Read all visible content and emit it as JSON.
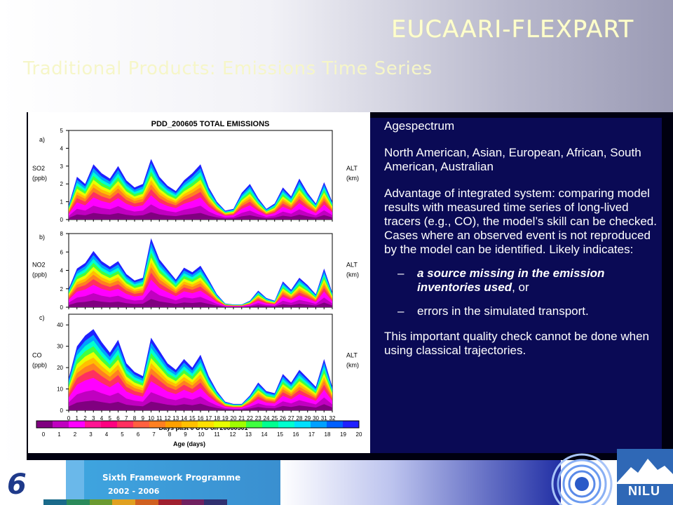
{
  "slide": {
    "title": "EUCAARI-FLEXPART",
    "subtitle": "Traditional Products: Emissions Time Series"
  },
  "bullets": {
    "b1": "Agespectrum",
    "b2": "North American, Asian, European, African, South American, Australian",
    "b3": "Advantage of integrated system: comparing model results with measured time series of long-lived tracers (e.g., CO), the model’s skill can be checked. Cases where an observed event is not reproduced by the model can be identified. Likely indicates:",
    "sub1_italic": "a source missing in the emission inventories used",
    "sub1_rest": ", or",
    "sub2": "errors in the simulated transport.",
    "b4": "This important quality check cannot be done when using classical trajectories.",
    "dash": "–"
  },
  "figure": {
    "chart_title": "PDD_200605 TOTAL EMISSIONS",
    "xlabel": "Days past 0 UTC on 20060501",
    "colorbar_label": "Age (days)",
    "x_ticks": [
      "0",
      "1",
      "2",
      "3",
      "4",
      "5",
      "6",
      "7",
      "8",
      "9",
      "10",
      "11",
      "12",
      "13",
      "14",
      "15",
      "16",
      "17",
      "18",
      "19",
      "20",
      "21",
      "22",
      "23",
      "24",
      "25",
      "26",
      "27",
      "28",
      "29",
      "30",
      "31",
      "32"
    ],
    "colorbar_ticks": [
      "0",
      "1",
      "2",
      "3",
      "4",
      "5",
      "6",
      "7",
      "8",
      "9",
      "10",
      "11",
      "12",
      "13",
      "14",
      "15",
      "16",
      "17",
      "18",
      "19",
      "20"
    ],
    "colorbar_colors": [
      "#800080",
      "#c000c0",
      "#ff00ff",
      "#ff1493",
      "#ff0080",
      "#ff3060",
      "#ff6040",
      "#ff8020",
      "#ffa000",
      "#ffc000",
      "#ffe000",
      "#e8ff00",
      "#a0ff00",
      "#40ff40",
      "#00ff90",
      "#00ffd0",
      "#00e0ff",
      "#00a0ff",
      "#0060ff",
      "#2020ff"
    ],
    "panels": [
      {
        "letter": "a)",
        "species": "SO2",
        "unit": "(ppb)",
        "ticks": [
          "0",
          "1",
          "2",
          "3",
          "4",
          "5"
        ],
        "ymax": 5,
        "alt": "ALT",
        "alt_unit": "(km)"
      },
      {
        "letter": "b)",
        "species": "NO2",
        "unit": "(ppb)",
        "ticks": [
          "0",
          "2",
          "4",
          "6",
          "8"
        ],
        "ymax": 8,
        "alt": "ALT",
        "alt_unit": "(km)"
      },
      {
        "letter": "c)",
        "species": "CO",
        "unit": "(ppb)",
        "ticks": [
          "0",
          "10",
          "20",
          "30",
          "40"
        ],
        "ymax": 45,
        "alt": "ALT",
        "alt_unit": "(km)"
      }
    ]
  },
  "footer": {
    "programme": "Sixth Framework Programme",
    "years": "2002 - 2006",
    "logo_digit": "6",
    "nilu": "NILU"
  },
  "chart_data": [
    {
      "type": "area",
      "title": "PDD_200605 TOTAL EMISSIONS",
      "panel": "a)",
      "ylabel": "SO2 (ppb)",
      "xlabel": "Days past 0 UTC on 20060501",
      "x": [
        0,
        1,
        2,
        3,
        4,
        5,
        6,
        7,
        8,
        9,
        10,
        11,
        12,
        13,
        14,
        15,
        16,
        17,
        18,
        19,
        20,
        21,
        22,
        23,
        24,
        25,
        26,
        27,
        28,
        29,
        30,
        31,
        32
      ],
      "values": [
        0.8,
        2.4,
        2.0,
        3.1,
        2.6,
        2.3,
        3.0,
        2.2,
        1.8,
        2.0,
        3.4,
        2.4,
        1.9,
        1.6,
        2.2,
        2.6,
        3.1,
        1.8,
        1.0,
        0.5,
        0.6,
        1.5,
        2.0,
        1.2,
        0.6,
        0.9,
        1.8,
        1.3,
        2.3,
        1.5,
        0.9,
        2.1,
        1.0
      ],
      "ylim": [
        0,
        5
      ]
    },
    {
      "type": "area",
      "panel": "b)",
      "ylabel": "NO2 (ppb)",
      "xlabel": "Days past 0 UTC on 20060501",
      "x": [
        0,
        1,
        2,
        3,
        4,
        5,
        6,
        7,
        8,
        9,
        10,
        11,
        12,
        13,
        14,
        15,
        16,
        17,
        18,
        19,
        20,
        21,
        22,
        23,
        24,
        25,
        26,
        27,
        28,
        29,
        30,
        31,
        32
      ],
      "values": [
        2.0,
        4.2,
        4.8,
        6.1,
        5.0,
        4.4,
        5.0,
        3.6,
        2.9,
        3.2,
        7.5,
        5.2,
        4.1,
        3.0,
        4.3,
        3.8,
        4.5,
        3.0,
        1.4,
        0.4,
        0.3,
        0.3,
        0.7,
        1.8,
        1.0,
        0.7,
        2.8,
        1.9,
        3.2,
        2.4,
        1.4,
        4.2,
        1.6
      ],
      "ylim": [
        0,
        8
      ]
    },
    {
      "type": "area",
      "panel": "c)",
      "ylabel": "CO (ppb)",
      "xlabel": "Days past 0 UTC on 20060501",
      "x": [
        0,
        1,
        2,
        3,
        4,
        5,
        6,
        7,
        8,
        9,
        10,
        11,
        12,
        13,
        14,
        15,
        16,
        17,
        18,
        19,
        20,
        21,
        22,
        23,
        24,
        25,
        26,
        27,
        28,
        29,
        30,
        31,
        32
      ],
      "values": [
        15,
        30,
        35,
        38,
        32,
        27,
        33,
        22,
        18,
        16,
        34,
        28,
        22,
        19,
        24,
        20,
        26,
        16,
        9,
        4,
        3,
        3,
        7,
        13,
        9,
        8,
        17,
        13,
        19,
        15,
        11,
        24,
        11
      ],
      "ylim": [
        0,
        45
      ]
    }
  ]
}
